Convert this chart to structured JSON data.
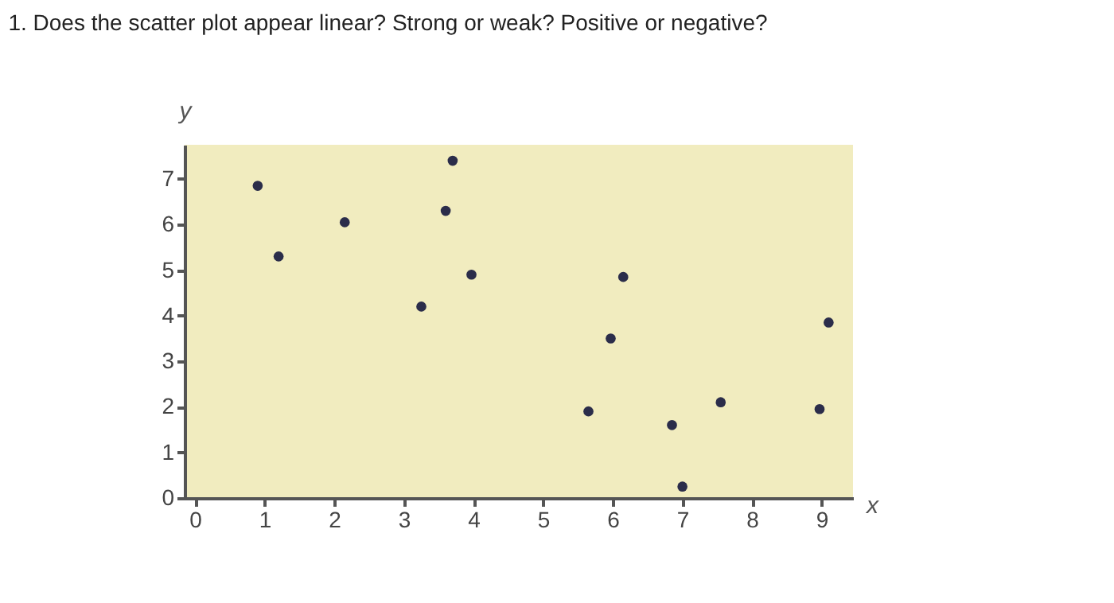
{
  "chart_data": {
    "type": "scatter",
    "title": "1.  Does the scatter plot appear linear? Strong or weak? Positive or negative?",
    "xlabel": "x",
    "ylabel": "y",
    "x": [
      0.9,
      1.2,
      2.15,
      3.25,
      3.6,
      3.7,
      3.97,
      5.65,
      5.97,
      6.15,
      6.85,
      7.0,
      7.55,
      8.97,
      9.1
    ],
    "values": [
      6.85,
      5.3,
      6.05,
      4.2,
      6.3,
      7.4,
      4.9,
      1.9,
      3.5,
      4.85,
      1.6,
      0.25,
      2.1,
      1.95,
      3.85
    ],
    "color": "#2b2d4a",
    "marker": "circle",
    "grid": false,
    "xlim": [
      -0.15,
      9.45
    ],
    "ylim": [
      0,
      7.75
    ],
    "xticks": [
      0,
      1,
      2,
      3,
      4,
      5,
      6,
      7,
      8,
      9
    ],
    "yticks": [
      0,
      1,
      2,
      3,
      4,
      5,
      6,
      7
    ]
  }
}
